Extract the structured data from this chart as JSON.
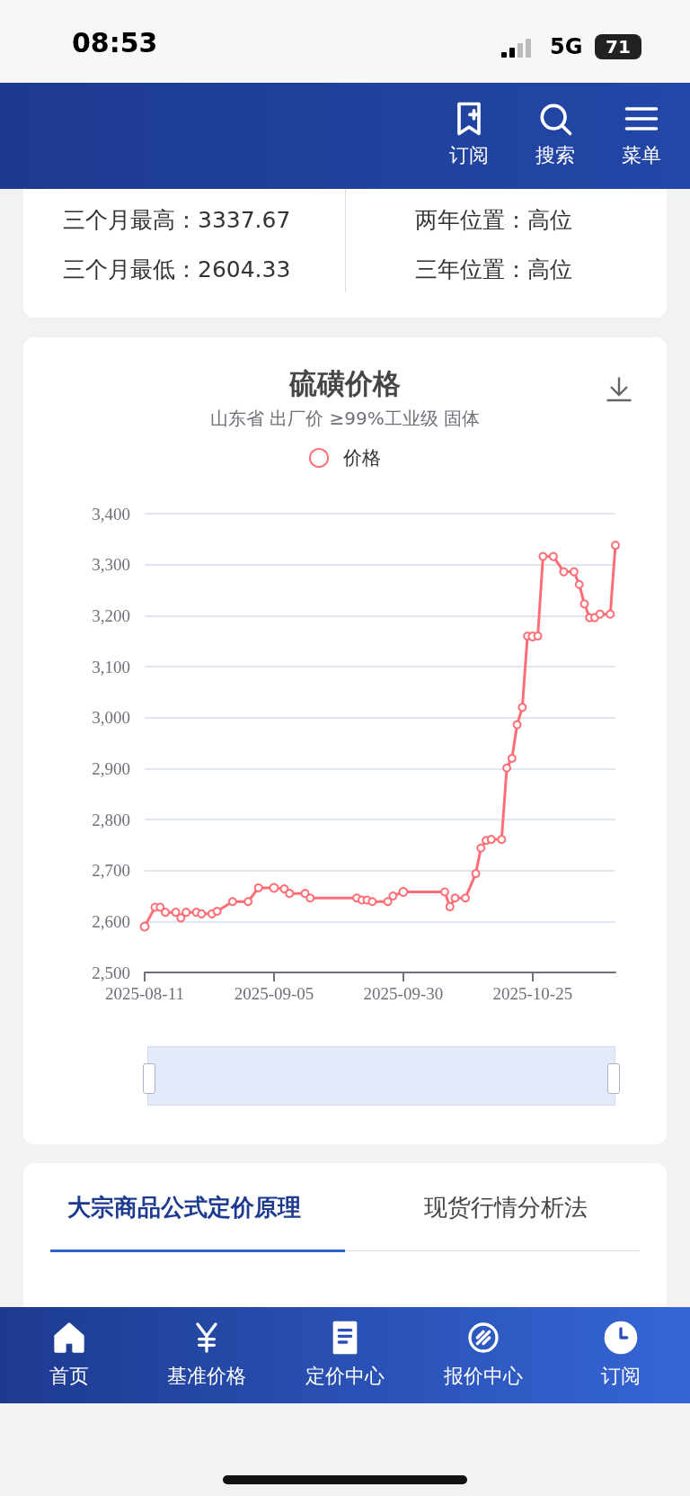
{
  "chart_data": {
    "type": "line",
    "title": "硫磺价格",
    "subtitle": "山东省 出厂价 ≥99%工业级 固体",
    "x": [
      "2025-08-11",
      "2025-08-13",
      "2025-08-14",
      "2025-08-15",
      "2025-08-17",
      "2025-08-18",
      "2025-08-19",
      "2025-08-21",
      "2025-08-22",
      "2025-08-24",
      "2025-08-25",
      "2025-08-28",
      "2025-08-31",
      "2025-09-02",
      "2025-09-05",
      "2025-09-07",
      "2025-09-08",
      "2025-09-11",
      "2025-09-12",
      "2025-09-21",
      "2025-09-22",
      "2025-09-23",
      "2025-09-24",
      "2025-09-27",
      "2025-09-28",
      "2025-09-30",
      "2025-10-08",
      "2025-10-09",
      "2025-10-10",
      "2025-10-12",
      "2025-10-14",
      "2025-10-15",
      "2025-10-16",
      "2025-10-17",
      "2025-10-19",
      "2025-10-20",
      "2025-10-21",
      "2025-10-22",
      "2025-10-23",
      "2025-10-24",
      "2025-10-25",
      "2025-10-26",
      "2025-10-27",
      "2025-10-29",
      "2025-10-31",
      "2025-11-02",
      "2025-11-03",
      "2025-11-04",
      "2025-11-05",
      "2025-11-06",
      "2025-11-07",
      "2025-11-09",
      "2025-11-10"
    ],
    "series": [
      {
        "name": "价格",
        "color": "#ff6e76",
        "values": [
          2590,
          2628,
          2628,
          2618,
          2618,
          2607,
          2618,
          2618,
          2615,
          2615,
          2620,
          2639,
          2639,
          2666,
          2666,
          2664,
          2655,
          2655,
          2646,
          2646,
          2642,
          2642,
          2639,
          2639,
          2650,
          2658,
          2658,
          2629,
          2646,
          2646,
          2694,
          2744,
          2759,
          2761,
          2761,
          2901,
          2920,
          2986,
          3020,
          3160,
          3159,
          3160,
          3316,
          3316,
          3286,
          3286,
          3261,
          3223,
          3196,
          3196,
          3203,
          3203,
          3338
        ]
      }
    ],
    "xlim": [
      "2025-08-11",
      "2025-11-10"
    ],
    "xticks": [
      "2025-08-11",
      "2025-09-05",
      "2025-09-30",
      "2025-10-25"
    ],
    "ylim": [
      2500,
      3400
    ],
    "yticks": [
      {
        "value": 2500,
        "label": "2,500"
      },
      {
        "value": 2600,
        "label": "2,600"
      },
      {
        "value": 2700,
        "label": "2,700"
      },
      {
        "value": 2800,
        "label": "2,800"
      },
      {
        "value": 2900,
        "label": "2,900"
      },
      {
        "value": 3000,
        "label": "3,000"
      },
      {
        "value": 3100,
        "label": "3,100"
      },
      {
        "value": 3200,
        "label": "3,200"
      },
      {
        "value": 3300,
        "label": "3,300"
      },
      {
        "value": 3400,
        "label": "3,400"
      }
    ],
    "grid": "y",
    "legend": "top",
    "marker": "circle",
    "line_style": "solid",
    "annotations": [
      "08:53",
      "5G",
      "71",
      "订阅",
      "搜索",
      "菜单",
      "三个月最高：3337.67",
      "三个月最低：2604.33",
      "两年位置：高位",
      "三年位置：高位",
      "大宗商品公式定价原理",
      "现货行情分析法",
      "首页",
      "基准价格",
      "定价中心",
      "报价中心",
      "订阅"
    ]
  }
}
